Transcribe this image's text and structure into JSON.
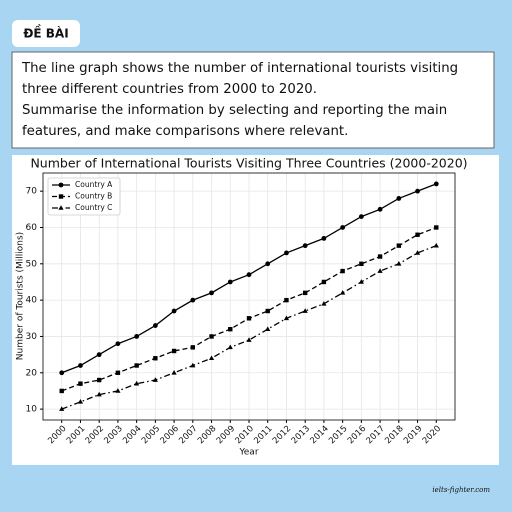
{
  "header": {
    "label": "ĐỀ BÀI"
  },
  "prompt": {
    "lines": [
      "The line graph shows the number of international tourists visiting",
      "three different countries from 2000 to 2020.",
      "Summarise the information by selecting and reporting the main",
      "features, and make comparisons where relevant."
    ]
  },
  "chart_data": {
    "type": "line",
    "title": "Number of International Tourists Visiting Three Countries (2000-2020)",
    "x_label": "Year",
    "y_label": "Number of Tourists (Millions)",
    "x": [
      2000,
      2001,
      2002,
      2003,
      2004,
      2005,
      2006,
      2007,
      2008,
      2009,
      2010,
      2011,
      2012,
      2013,
      2014,
      2015,
      2016,
      2017,
      2018,
      2019,
      2020
    ],
    "series": [
      {
        "name": "Country A",
        "color": "#000000",
        "dash": "solid",
        "marker": "circle",
        "values": [
          20,
          22,
          25,
          28,
          30,
          33,
          37,
          40,
          42,
          45,
          47,
          50,
          53,
          55,
          57,
          60,
          63,
          65,
          68,
          70,
          72
        ]
      },
      {
        "name": "Country B",
        "color": "#000000",
        "dash": "dashed",
        "marker": "square",
        "values": [
          15,
          17,
          18,
          20,
          22,
          24,
          26,
          27,
          30,
          32,
          35,
          37,
          40,
          42,
          45,
          48,
          50,
          52,
          55,
          58,
          60
        ]
      },
      {
        "name": "Country C",
        "color": "#000000",
        "dash": "dashdot",
        "marker": "triangle",
        "values": [
          10,
          12,
          14,
          15,
          17,
          18,
          20,
          22,
          24,
          27,
          29,
          32,
          35,
          37,
          39,
          42,
          45,
          48,
          50,
          53,
          55
        ]
      }
    ],
    "xlim": [
      1999,
      2021
    ],
    "xticks": [
      2000,
      2001,
      2002,
      2003,
      2004,
      2005,
      2006,
      2007,
      2008,
      2009,
      2010,
      2011,
      2012,
      2013,
      2014,
      2015,
      2016,
      2017,
      2018,
      2019,
      2020
    ],
    "ylim": [
      7,
      75
    ],
    "yticks": [
      10,
      20,
      30,
      40,
      50,
      60,
      70
    ],
    "grid": true,
    "legend": "upper-left"
  },
  "footer": {
    "source": "ielts-fighter.com"
  }
}
